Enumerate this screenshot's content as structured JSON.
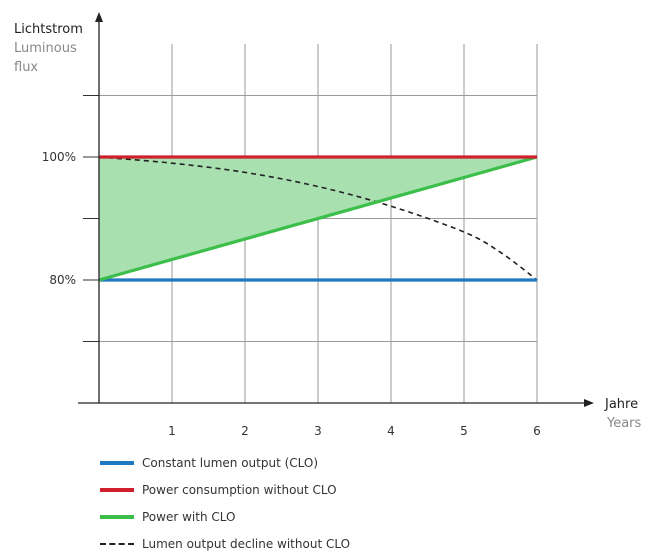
{
  "chart_data": {
    "type": "line",
    "y_title": "Lichtstrom",
    "y_subtitle_lines": [
      "Luminous",
      "flux"
    ],
    "x_title": "Jahre",
    "x_subtitle": "Years",
    "x_ticks": [
      "1",
      "2",
      "3",
      "4",
      "5",
      "6"
    ],
    "y_ticks": [
      {
        "value": 100,
        "label": "100%"
      },
      {
        "value": 80,
        "label": "80%"
      }
    ],
    "xlim": [
      0,
      6
    ],
    "ylim": [
      60,
      120
    ],
    "grid": true,
    "shaded_region": {
      "between": [
        "Power consumption without CLO",
        "Power with CLO"
      ],
      "color": "#a8e0b0"
    },
    "series": [
      {
        "name": "Constant lumen output (CLO)",
        "color": "#1f78c1",
        "style": "solid",
        "x": [
          0,
          6
        ],
        "y": [
          80,
          80
        ]
      },
      {
        "name": "Power consumption without CLO",
        "color": "#d0202e",
        "style": "solid",
        "x": [
          0,
          6
        ],
        "y": [
          100,
          100
        ]
      },
      {
        "name": "Power with CLO",
        "color": "#3cbf4a",
        "style": "solid",
        "x": [
          0,
          6
        ],
        "y": [
          80,
          100
        ]
      },
      {
        "name": "Lumen output decline without CLO",
        "color": "#222222",
        "style": "dashed",
        "x": [
          0,
          1,
          2,
          3,
          4,
          5,
          5.5,
          6
        ],
        "y": [
          100,
          99,
          97.5,
          95.2,
          92,
          87.8,
          84.5,
          80
        ]
      }
    ]
  },
  "legend": [
    {
      "label": "Constant lumen output (CLO)",
      "color": "#1f78c1",
      "style": "solid"
    },
    {
      "label": "Power consumption without CLO",
      "color": "#d0202e",
      "style": "solid"
    },
    {
      "label": "Power with CLO",
      "color": "#3cbf4a",
      "style": "solid"
    },
    {
      "label": "Lumen output decline without CLO",
      "color": "#222222",
      "style": "dashed"
    }
  ]
}
